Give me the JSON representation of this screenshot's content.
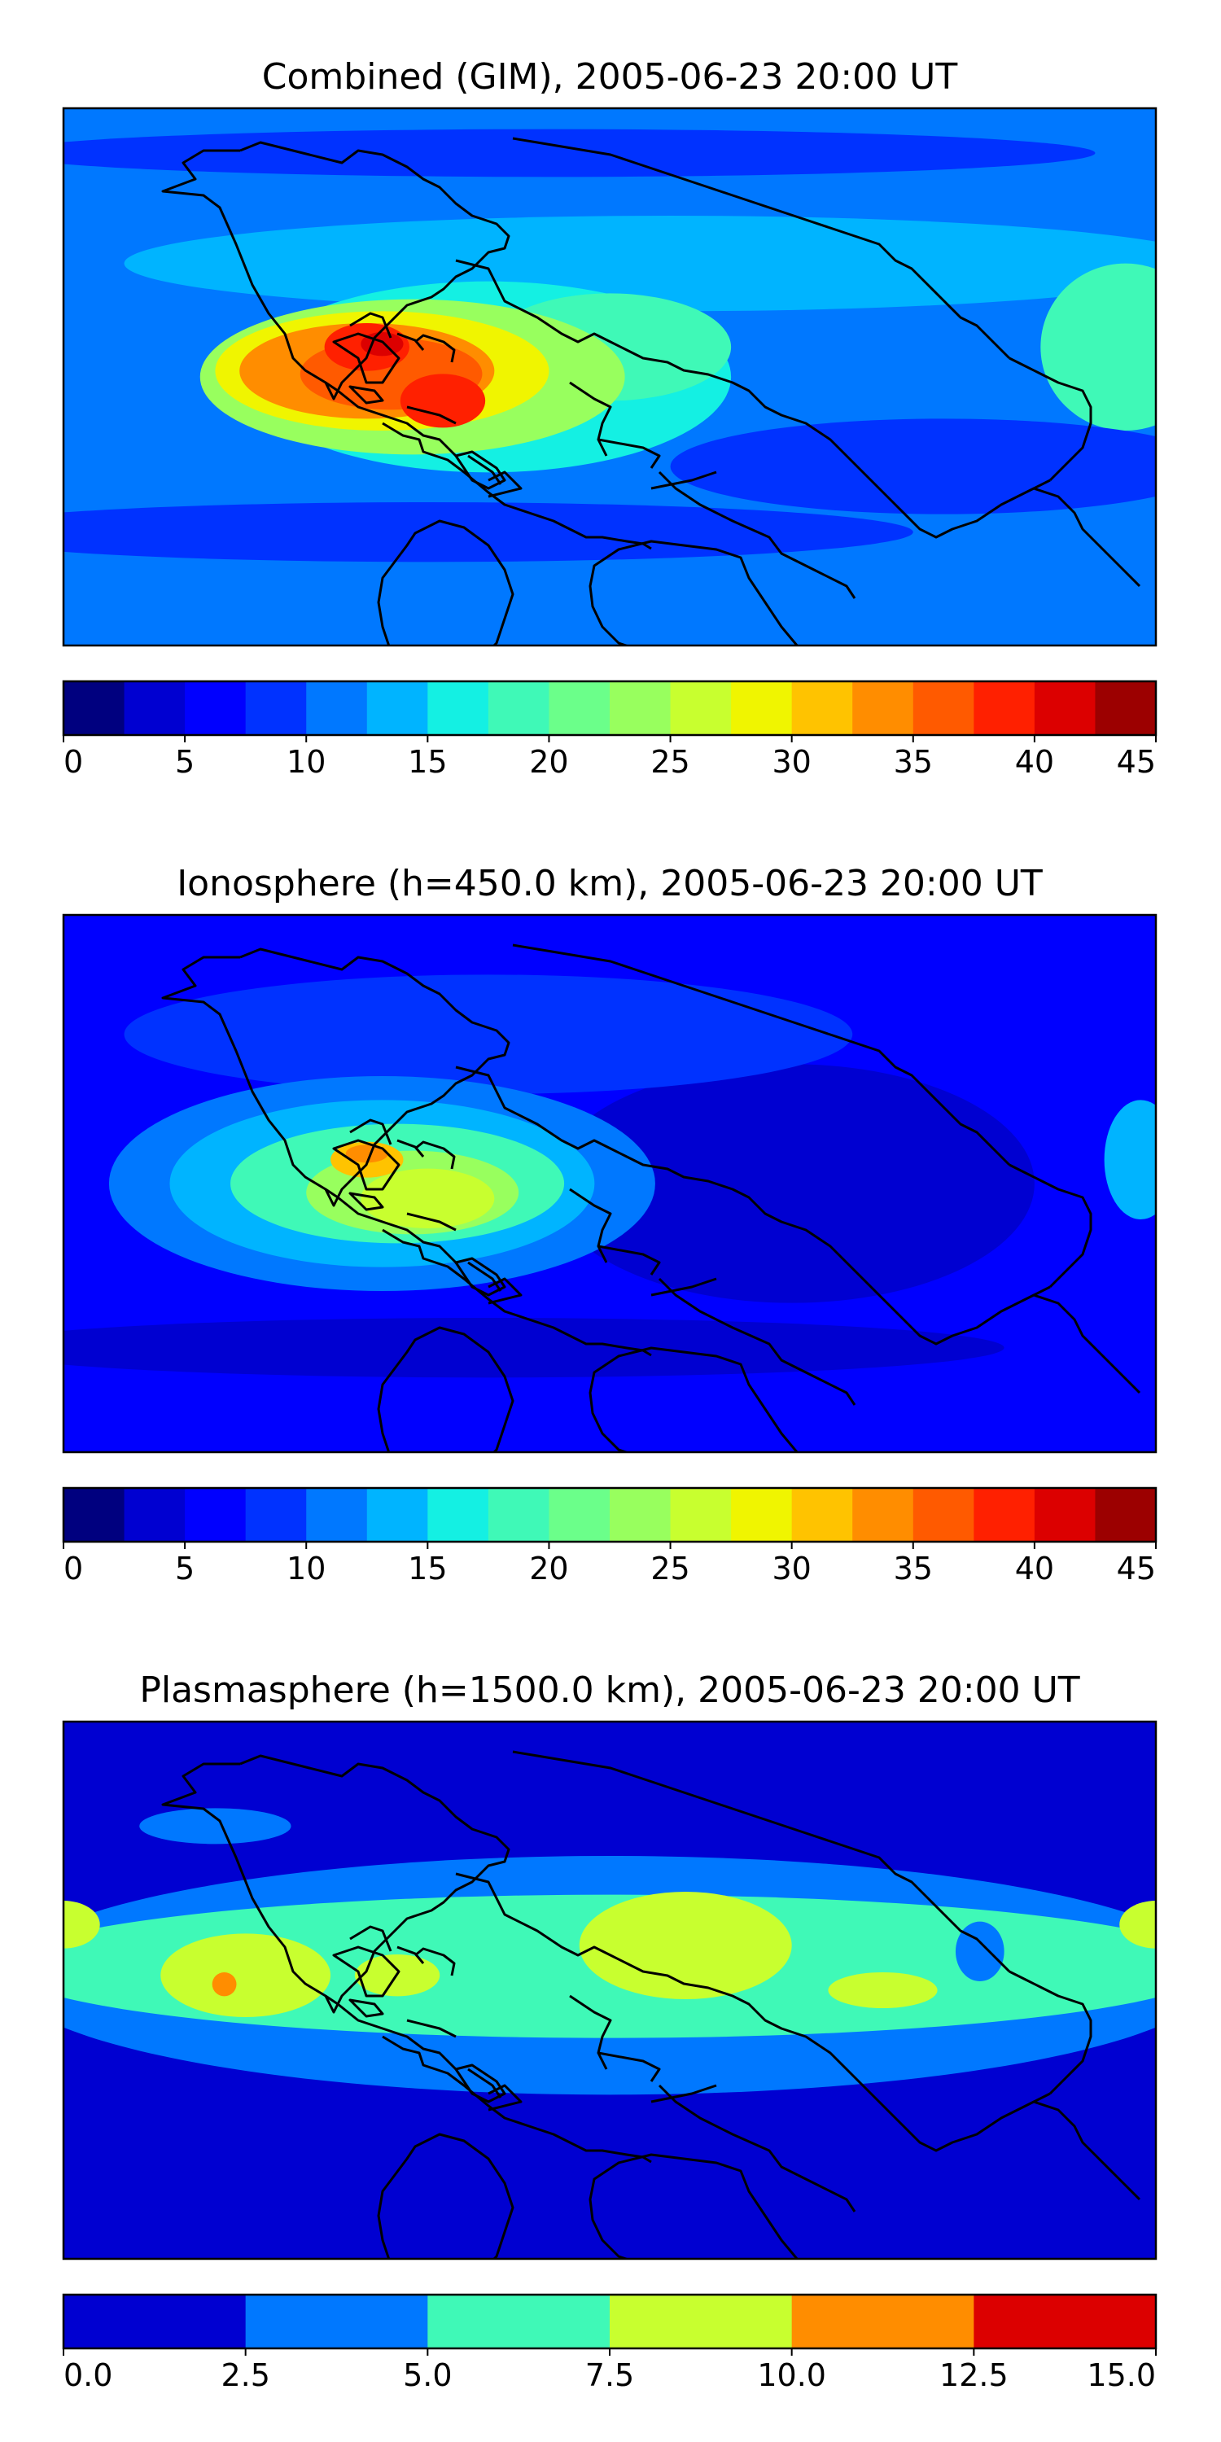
{
  "chart_data": [
    {
      "type": "heatmap",
      "title": "Combined (GIM), 2005-06-23 20:00 UT",
      "xlabel": "",
      "ylabel": "",
      "colorbar": {
        "levels": [
          0,
          2.5,
          5,
          7.5,
          10,
          12.5,
          15,
          17.5,
          20,
          22.5,
          25,
          27.5,
          30,
          32.5,
          35,
          37.5,
          40,
          42.5,
          45
        ],
        "colors": [
          "#00007f",
          "#0000d1",
          "#0000ff",
          "#0032ff",
          "#0078ff",
          "#00b4ff",
          "#14f0e3",
          "#3ff9b7",
          "#6bff8a",
          "#98ff5e",
          "#c8ff2f",
          "#f0f500",
          "#ffc300",
          "#ff8d00",
          "#ff5a00",
          "#ff2000",
          "#dc0000",
          "#9c0000"
        ],
        "tick_values": [
          0,
          5,
          10,
          15,
          20,
          25,
          30,
          35,
          40,
          45
        ],
        "tick_labels": [
          "0",
          "5",
          "10",
          "15",
          "20",
          "25",
          "30",
          "35",
          "40",
          "45"
        ]
      },
      "background_level": 4,
      "blobs": [
        {
          "lon": 20,
          "lat": 38,
          "rx": 180,
          "ry": 16,
          "level": 5
        },
        {
          "lon": -40,
          "lat": 0,
          "rx": 80,
          "ry": 32,
          "level": 6
        },
        {
          "lon": 0,
          "lat": 10,
          "rx": 40,
          "ry": 18,
          "level": 7
        },
        {
          "lon": 170,
          "lat": 10,
          "rx": 28,
          "ry": 28,
          "level": 7
        },
        {
          "lon": -65,
          "lat": 0,
          "rx": 70,
          "ry": 26,
          "level": 9
        },
        {
          "lon": -75,
          "lat": 2,
          "rx": 55,
          "ry": 20,
          "level": 11
        },
        {
          "lon": -80,
          "lat": 2,
          "rx": 42,
          "ry": 16,
          "level": 13
        },
        {
          "lon": -72,
          "lat": 1,
          "rx": 30,
          "ry": 12,
          "level": 14
        },
        {
          "lon": -55,
          "lat": -8,
          "rx": 14,
          "ry": 9,
          "level": 15
        },
        {
          "lon": -80,
          "lat": 10,
          "rx": 14,
          "ry": 8,
          "level": 15
        },
        {
          "lon": -75,
          "lat": 11,
          "rx": 7,
          "ry": 4,
          "level": 16
        },
        {
          "lon": 110,
          "lat": -30,
          "rx": 90,
          "ry": 16,
          "level": 3
        },
        {
          "lon": -60,
          "lat": -52,
          "rx": 160,
          "ry": 10,
          "level": 3
        },
        {
          "lon": -20,
          "lat": 75,
          "rx": 180,
          "ry": 8,
          "level": 3
        }
      ]
    },
    {
      "type": "heatmap",
      "title": "Ionosphere  (h=450.0 km), 2005-06-23 20:00 UT",
      "xlabel": "",
      "ylabel": "",
      "colorbar": {
        "levels": [
          0,
          2.5,
          5,
          7.5,
          10,
          12.5,
          15,
          17.5,
          20,
          22.5,
          25,
          27.5,
          30,
          32.5,
          35,
          37.5,
          40,
          42.5,
          45
        ],
        "colors": [
          "#00007f",
          "#0000d1",
          "#0000ff",
          "#0032ff",
          "#0078ff",
          "#00b4ff",
          "#14f0e3",
          "#3ff9b7",
          "#6bff8a",
          "#98ff5e",
          "#c8ff2f",
          "#f0f500",
          "#ffc300",
          "#ff8d00",
          "#ff5a00",
          "#ff2000",
          "#dc0000",
          "#9c0000"
        ],
        "tick_values": [
          0,
          5,
          10,
          15,
          20,
          25,
          30,
          35,
          40,
          45
        ],
        "tick_labels": [
          "0",
          "5",
          "10",
          "15",
          "20",
          "25",
          "30",
          "35",
          "40",
          "45"
        ]
      },
      "background_level": 2,
      "blobs": [
        {
          "lon": 60,
          "lat": 0,
          "rx": 80,
          "ry": 40,
          "level": 1
        },
        {
          "lon": -40,
          "lat": 50,
          "rx": 120,
          "ry": 20,
          "level": 3
        },
        {
          "lon": -75,
          "lat": 0,
          "rx": 90,
          "ry": 36,
          "level": 4
        },
        {
          "lon": -75,
          "lat": 0,
          "rx": 70,
          "ry": 28,
          "level": 5
        },
        {
          "lon": -70,
          "lat": 0,
          "rx": 55,
          "ry": 20,
          "level": 7
        },
        {
          "lon": -65,
          "lat": -3,
          "rx": 35,
          "ry": 14,
          "level": 9
        },
        {
          "lon": -60,
          "lat": -5,
          "rx": 22,
          "ry": 10,
          "level": 10
        },
        {
          "lon": -80,
          "lat": 8,
          "rx": 12,
          "ry": 6,
          "level": 12
        },
        {
          "lon": -80,
          "lat": 10,
          "rx": 7,
          "ry": 3,
          "level": 13
        },
        {
          "lon": 175,
          "lat": 8,
          "rx": 12,
          "ry": 20,
          "level": 5
        },
        {
          "lon": -40,
          "lat": -55,
          "rx": 170,
          "ry": 10,
          "level": 1
        }
      ]
    },
    {
      "type": "heatmap",
      "title": "Plasmasphere (h=1500.0 km), 2005-06-23 20:00 UT",
      "xlabel": "",
      "ylabel": "",
      "colorbar": {
        "levels": [
          0,
          2.5,
          5,
          7.5,
          10,
          12.5,
          15
        ],
        "colors": [
          "#0000d1",
          "#0078ff",
          "#3ff9b7",
          "#c8ff2f",
          "#ff8d00",
          "#dc0000"
        ],
        "tick_values": [
          0,
          2.5,
          5,
          7.5,
          10,
          12.5,
          15
        ],
        "tick_labels": [
          "0.0",
          "2.5",
          "5.0",
          "7.5",
          "10.0",
          "12.5",
          "15.0"
        ]
      },
      "background_level": 0,
      "blobs": [
        {
          "lon": 0,
          "lat": 5,
          "rx": 200,
          "ry": 40,
          "level": 1
        },
        {
          "lon": 0,
          "lat": 8,
          "rx": 200,
          "ry": 24,
          "level": 2
        },
        {
          "lon": -130,
          "lat": 55,
          "rx": 25,
          "ry": 6,
          "level": 1
        },
        {
          "lon": 25,
          "lat": 15,
          "rx": 35,
          "ry": 18,
          "level": 3
        },
        {
          "lon": -120,
          "lat": 5,
          "rx": 28,
          "ry": 14,
          "level": 3
        },
        {
          "lon": -70,
          "lat": 5,
          "rx": 14,
          "ry": 7,
          "level": 3
        },
        {
          "lon": 90,
          "lat": 0,
          "rx": 18,
          "ry": 6,
          "level": 3
        },
        {
          "lon": 180,
          "lat": 22,
          "rx": 12,
          "ry": 8,
          "level": 3
        },
        {
          "lon": -180,
          "lat": 22,
          "rx": 12,
          "ry": 8,
          "level": 3
        },
        {
          "lon": -127,
          "lat": 2,
          "rx": 4,
          "ry": 4,
          "level": 4
        },
        {
          "lon": 122,
          "lat": 13,
          "rx": 8,
          "ry": 10,
          "level": 1
        }
      ]
    }
  ]
}
